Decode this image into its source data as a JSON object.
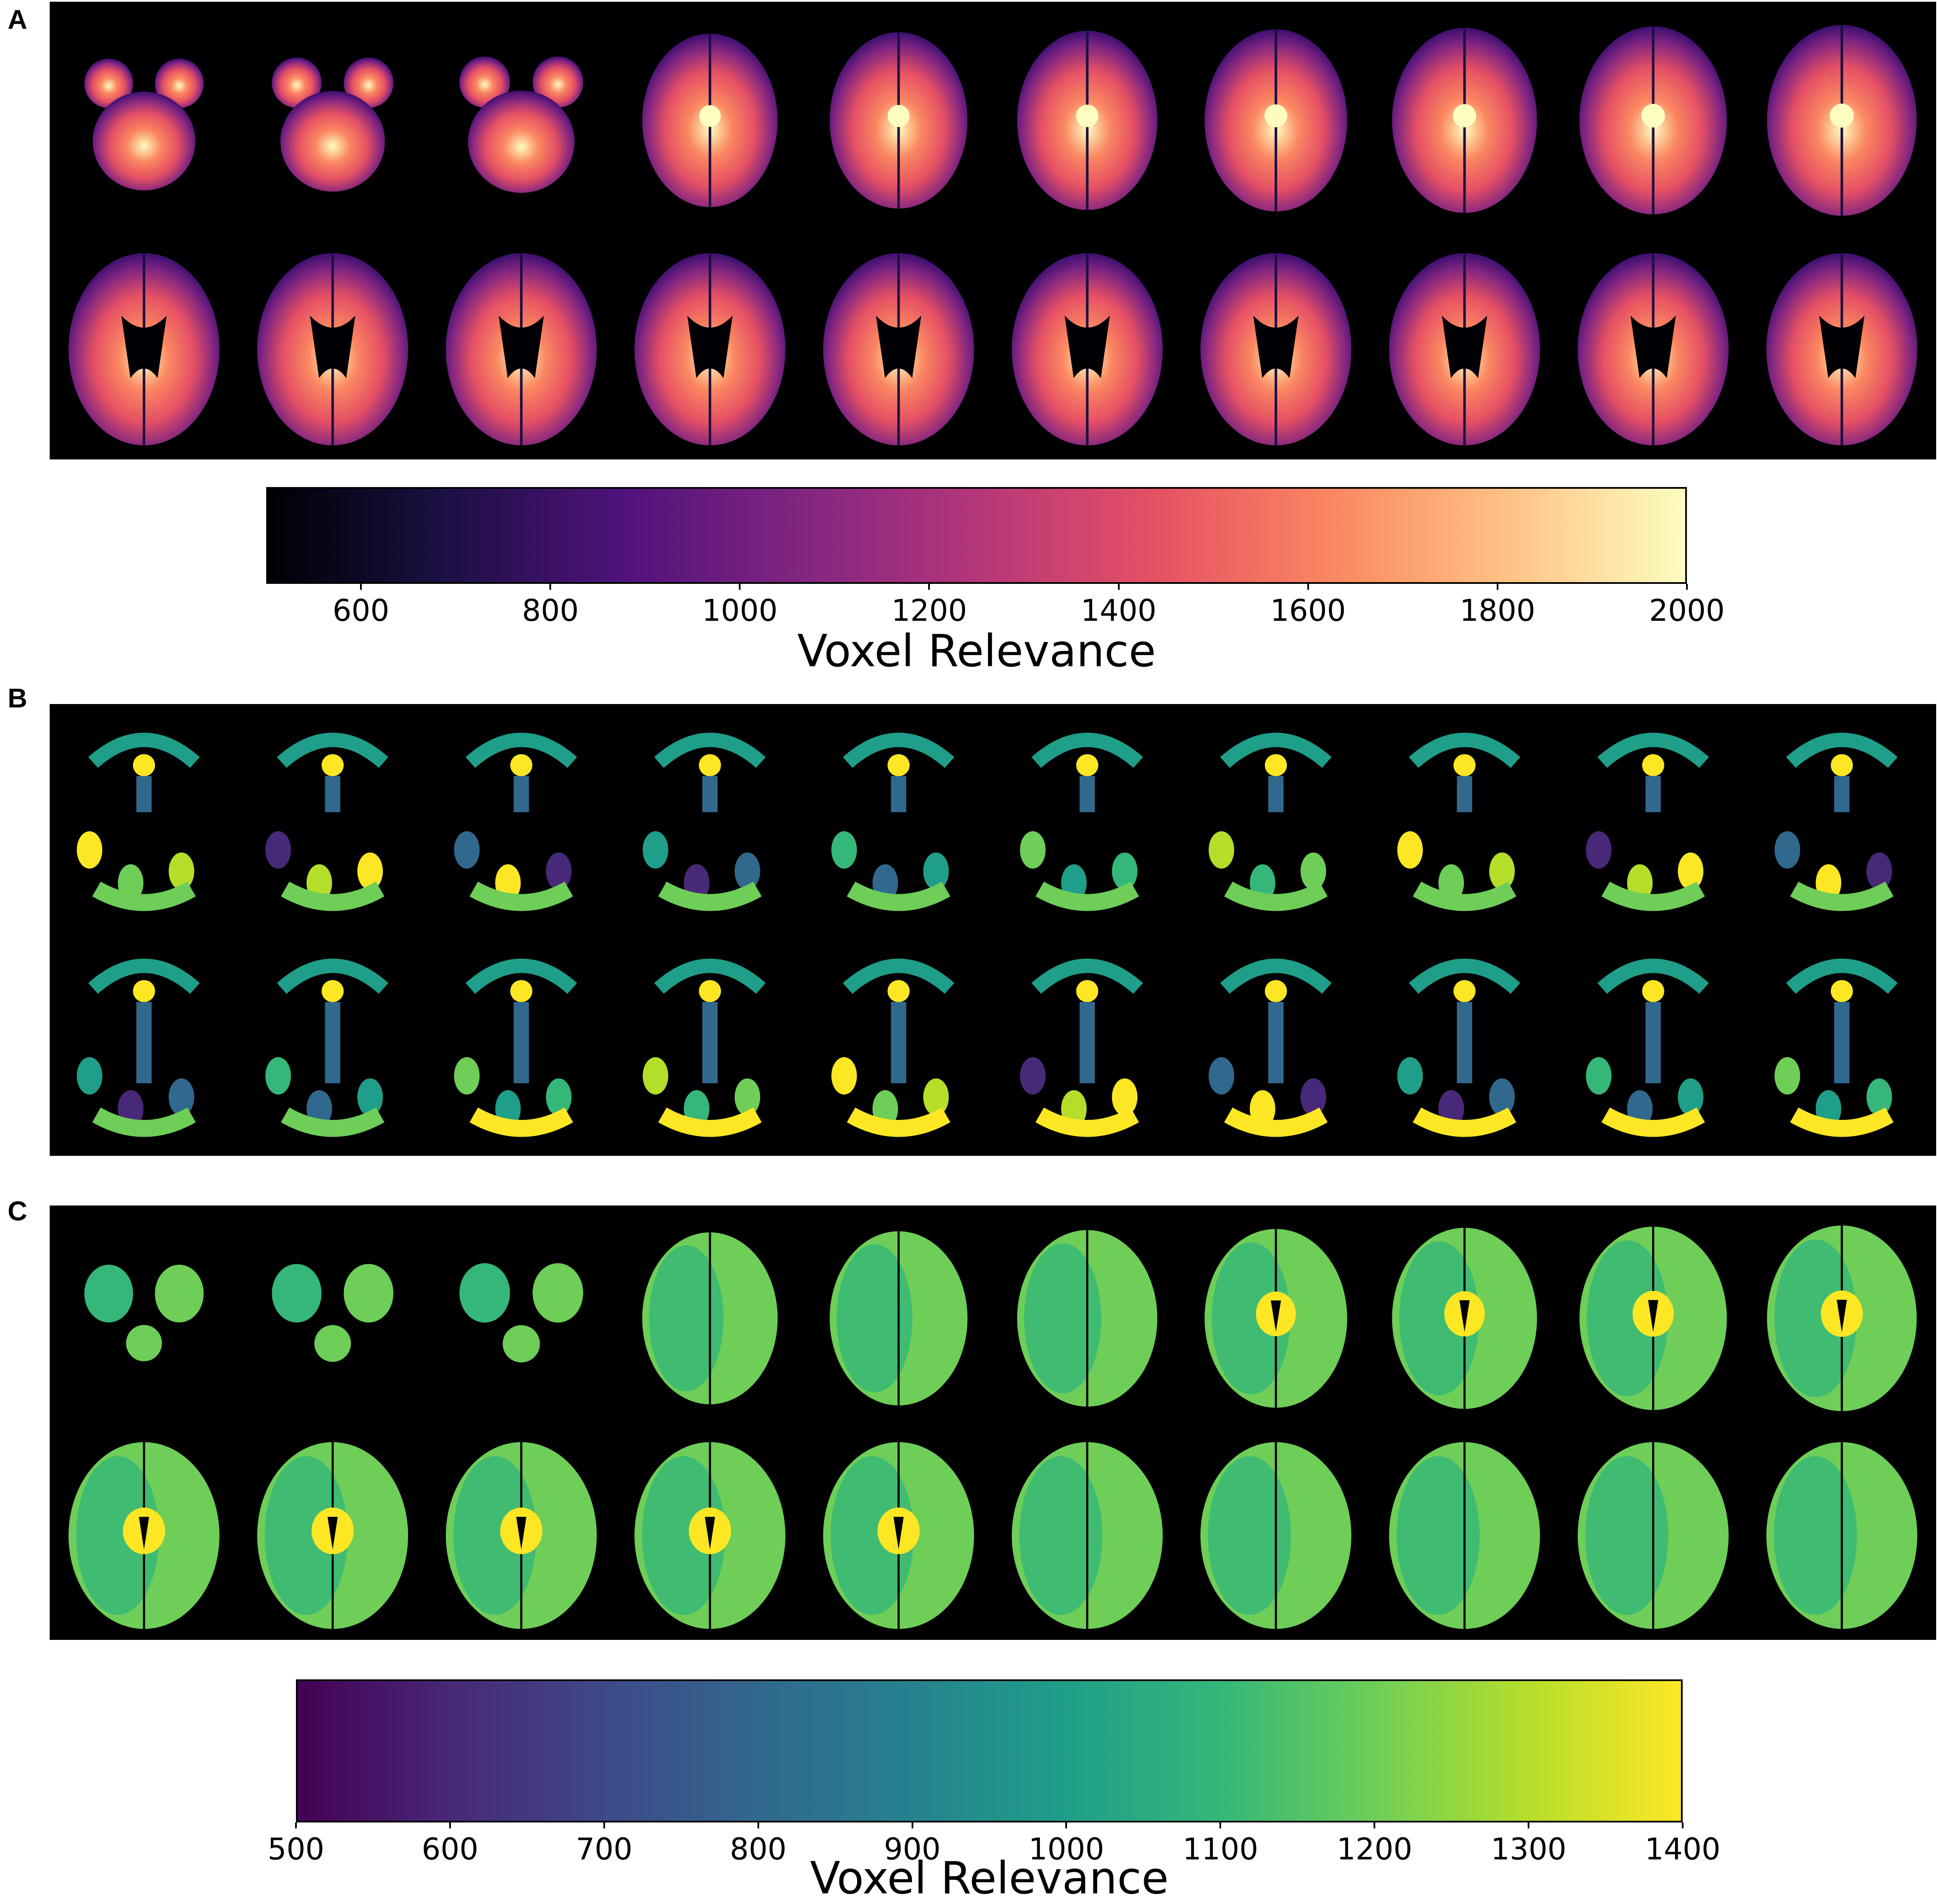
{
  "panels": [
    {
      "letter": "A"
    },
    {
      "letter": "B"
    },
    {
      "letter": "C"
    }
  ],
  "colorbar_a": {
    "label": "Voxel Relevance",
    "colormap": "magma",
    "ticks": [
      "600",
      "800",
      "1000",
      "1200",
      "1400",
      "1600",
      "1800",
      "2000"
    ],
    "tick_values": [
      600,
      800,
      1000,
      1200,
      1400,
      1600,
      1800,
      2000
    ],
    "min": 500,
    "max": 2000,
    "colors": [
      "#000004",
      "#1c1044",
      "#4f127b",
      "#812581",
      "#b5367a",
      "#e55064",
      "#fb8761",
      "#fec287",
      "#fcfdbf"
    ]
  },
  "colorbar_c": {
    "label": "Voxel Relevance",
    "colormap": "viridis",
    "ticks": [
      "500",
      "600",
      "700",
      "800",
      "900",
      "1000",
      "1100",
      "1200",
      "1300",
      "1400"
    ],
    "tick_values": [
      500,
      600,
      700,
      800,
      900,
      1000,
      1100,
      1200,
      1300,
      1400
    ],
    "min": 500,
    "max": 1400,
    "colors": [
      "#440154",
      "#482878",
      "#3e4989",
      "#31688e",
      "#26828e",
      "#1f9e89",
      "#35b779",
      "#6ece58",
      "#b5de2b",
      "#fde725"
    ]
  }
}
